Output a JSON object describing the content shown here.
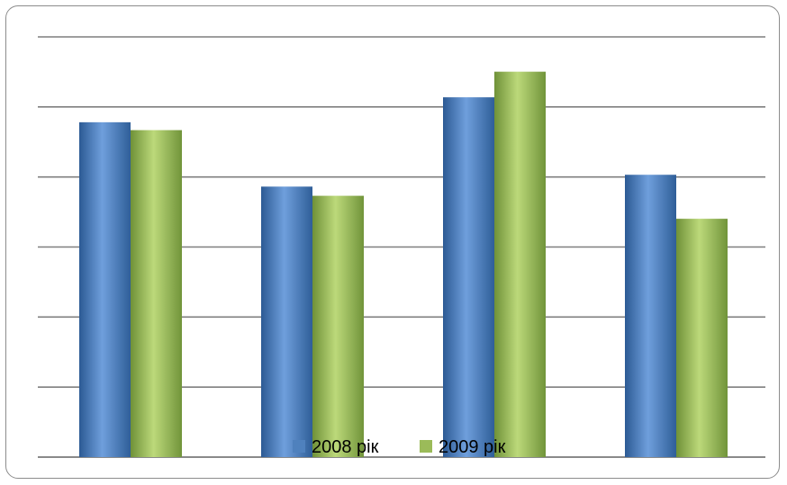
{
  "caption": "",
  "chart_data": {
    "type": "bar",
    "categories": [
      "",
      "",
      "",
      ""
    ],
    "series": [
      {
        "name": "2008 рік",
        "values": [
          5.1,
          4.12,
          5.48,
          4.3
        ],
        "color": "#4f81bd"
      },
      {
        "name": "2009 рік",
        "values": [
          4.98,
          3.98,
          5.87,
          3.63
        ],
        "color": "#9bbb59"
      }
    ],
    "ylim": [
      0,
      6.4
    ],
    "gridlines": 7,
    "grid": true,
    "legend": "bottom",
    "xlabel": "",
    "ylabel": ""
  }
}
